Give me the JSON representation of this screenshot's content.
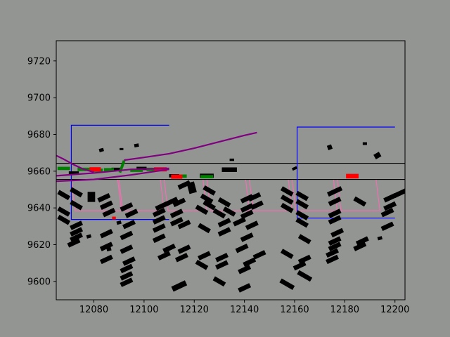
{
  "chart_data": {
    "type": "scatter",
    "title": "",
    "xlabel": "",
    "ylabel": "",
    "xlim": [
      12065,
      12204
    ],
    "ylim": [
      9590,
      9731
    ],
    "xticks": [
      12080,
      12100,
      12120,
      12140,
      12160,
      12180,
      12200
    ],
    "yticks": [
      9600,
      9620,
      9640,
      9660,
      9680,
      9700,
      9720
    ],
    "grid": false,
    "legend": "none",
    "colors": {
      "background": "#939593",
      "lane_lines": "#000000",
      "boundary": "#0000ff",
      "parking_slots": "#ff69b4",
      "trajectory": "#800080",
      "path_marks": "#008000",
      "highlight": "#ff0000",
      "vehicles": "#000000"
    },
    "horizontal_lines": [
      {
        "name": "lane-line-upper",
        "y": 9664.3
      },
      {
        "name": "lane-line-lower",
        "y": 9655.5
      }
    ],
    "boundaries": [
      {
        "name": "boundary-left",
        "points": [
          [
            12110,
            9685
          ],
          [
            12071,
            9685
          ],
          [
            12071,
            9633.7
          ],
          [
            12110,
            9633.7
          ]
        ]
      },
      {
        "name": "boundary-right",
        "points": [
          [
            12200,
            9684
          ],
          [
            12161,
            9684
          ],
          [
            12161,
            9634.5
          ],
          [
            12200,
            9634.5
          ]
        ]
      }
    ],
    "parking_slots": [
      {
        "x0": 12071,
        "x1": 12091,
        "y_top": 9655.3,
        "y_bottom": 9638.5
      },
      {
        "x0": 12090,
        "x1": 12108,
        "y_top": 9655.3,
        "y_bottom": 9638.5
      },
      {
        "x0": 12108,
        "x1": 12125,
        "y_top": 9655.3,
        "y_bottom": 9638.5
      },
      {
        "x0": 12125,
        "x1": 12142,
        "y_top": 9655.3,
        "y_bottom": 9638.5
      },
      {
        "x0": 12142,
        "x1": 12159,
        "y_top": 9655.3,
        "y_bottom": 9638.5
      },
      {
        "x0": 12159,
        "x1": 12177,
        "y_top": 9655.3,
        "y_bottom": 9638.5
      },
      {
        "x0": 12177,
        "x1": 12194,
        "y_top": 9655.3,
        "y_bottom": 9638.5
      }
    ],
    "trajectories": [
      {
        "points": [
          [
            12065,
            9668.5
          ],
          [
            12068,
            9666.5
          ],
          [
            12072,
            9663.5
          ],
          [
            12076,
            9661
          ],
          [
            12080,
            9659.5
          ]
        ]
      },
      {
        "points": [
          [
            12065,
            9654.5
          ],
          [
            12080,
            9655.5
          ],
          [
            12095,
            9658
          ],
          [
            12110,
            9661
          ]
        ]
      },
      {
        "points": [
          [
            12065,
            9657.5
          ],
          [
            12080,
            9659
          ],
          [
            12095,
            9661
          ],
          [
            12110,
            9661.5
          ]
        ]
      },
      {
        "points": [
          [
            12092,
            9666
          ],
          [
            12100,
            9667.5
          ],
          [
            12110,
            9669.5
          ],
          [
            12120,
            9672.5
          ],
          [
            12130,
            9676
          ],
          [
            12140,
            9679.5
          ],
          [
            12145,
            9681
          ]
        ]
      }
    ],
    "path_marks": [
      {
        "x": 12068,
        "y": 9661.5,
        "w": 5,
        "h": 1.8,
        "angle": 0
      },
      {
        "x": 12076,
        "y": 9661,
        "w": 5,
        "h": 1.8,
        "angle": 0
      },
      {
        "x": 12081,
        "y": 9660.5,
        "w": 5,
        "h": 1.8,
        "angle": 0
      },
      {
        "x": 12086,
        "y": 9660.8,
        "w": 4,
        "h": 1.8,
        "angle": 0
      },
      {
        "x": 12091.2,
        "y": 9662.5,
        "w": 5,
        "h": 1.5,
        "angle": 70
      },
      {
        "x": 12097,
        "y": 9660.5,
        "w": 5,
        "h": 1.8,
        "angle": 0
      },
      {
        "x": 12103,
        "y": 9661,
        "w": 4,
        "h": 1.8,
        "angle": 0
      },
      {
        "x": 12115,
        "y": 9657.3,
        "w": 4,
        "h": 1.8,
        "angle": 0
      },
      {
        "x": 12125,
        "y": 9657,
        "w": 5,
        "h": 1.8,
        "angle": 0
      }
    ],
    "highlights": [
      {
        "x": 12080.5,
        "y": 9661,
        "w": 4.5,
        "h": 2.3
      },
      {
        "x": 12106.5,
        "y": 9661,
        "w": 5,
        "h": 2.3
      },
      {
        "x": 12113,
        "y": 9657,
        "w": 4.5,
        "h": 2.3
      },
      {
        "x": 12183,
        "y": 9657.3,
        "w": 5,
        "h": 2.5
      },
      {
        "x": 12088,
        "y": 9634.5,
        "w": 1.5,
        "h": 1.5
      }
    ],
    "vehicles": [
      {
        "x": 12072,
        "y": 9659,
        "w": 4,
        "h": 1.8,
        "angle": 0
      },
      {
        "x": 12089,
        "y": 9661,
        "w": 4,
        "h": 1.8,
        "angle": 0
      },
      {
        "x": 12099,
        "y": 9661.5,
        "w": 4,
        "h": 1.8,
        "angle": 0
      },
      {
        "x": 12112,
        "y": 9657.5,
        "w": 4,
        "h": 1.8,
        "angle": 0
      },
      {
        "x": 12125,
        "y": 9657.5,
        "w": 5.5,
        "h": 2.3,
        "angle": 0
      },
      {
        "x": 12134,
        "y": 9660.8,
        "w": 6,
        "h": 2.5,
        "angle": 0
      },
      {
        "x": 12083,
        "y": 9671.5,
        "w": 1.8,
        "h": 1.8,
        "angle": 15
      },
      {
        "x": 12091,
        "y": 9672,
        "w": 1.5,
        "h": 1.2,
        "angle": 0
      },
      {
        "x": 12097,
        "y": 9674,
        "w": 1.8,
        "h": 1.8,
        "angle": 10
      },
      {
        "x": 12135,
        "y": 9666.2,
        "w": 1.8,
        "h": 1.3,
        "angle": 0
      },
      {
        "x": 12174,
        "y": 9673,
        "w": 1.8,
        "h": 2.5,
        "angle": 20
      },
      {
        "x": 12188,
        "y": 9675,
        "w": 1.7,
        "h": 1.5,
        "angle": 0
      },
      {
        "x": 12193,
        "y": 9668.5,
        "w": 2.5,
        "h": 2.8,
        "angle": 30
      },
      {
        "x": 12160,
        "y": 9661.5,
        "w": 2,
        "h": 1.5,
        "angle": 25
      },
      {
        "x": 12068,
        "y": 9647,
        "w": 5,
        "h": 2.5,
        "angle": -30
      },
      {
        "x": 12073,
        "y": 9648.5,
        "w": 5,
        "h": 2.5,
        "angle": -30
      },
      {
        "x": 12079,
        "y": 9646,
        "w": 3,
        "h": 5.5,
        "angle": 0
      },
      {
        "x": 12084,
        "y": 9645.5,
        "w": 5,
        "h": 2.5,
        "angle": 25
      },
      {
        "x": 12073,
        "y": 9641.5,
        "w": 5,
        "h": 2.5,
        "angle": -30
      },
      {
        "x": 12068,
        "y": 9638,
        "w": 5,
        "h": 2.5,
        "angle": -30
      },
      {
        "x": 12085,
        "y": 9641.5,
        "w": 5,
        "h": 2.5,
        "angle": 25
      },
      {
        "x": 12086,
        "y": 9637.5,
        "w": 5,
        "h": 2.5,
        "angle": 25
      },
      {
        "x": 12093,
        "y": 9640.5,
        "w": 5,
        "h": 2.5,
        "angle": 25
      },
      {
        "x": 12095,
        "y": 9637,
        "w": 5,
        "h": 2.5,
        "angle": 25
      },
      {
        "x": 12068,
        "y": 9633.5,
        "w": 5,
        "h": 2.5,
        "angle": -30
      },
      {
        "x": 12073,
        "y": 9630.5,
        "w": 5,
        "h": 2.5,
        "angle": 25
      },
      {
        "x": 12073,
        "y": 9627,
        "w": 5,
        "h": 2.5,
        "angle": 25
      },
      {
        "x": 12073,
        "y": 9624,
        "w": 5,
        "h": 2.5,
        "angle": 25
      },
      {
        "x": 12072,
        "y": 9621,
        "w": 5,
        "h": 2.5,
        "angle": 25
      },
      {
        "x": 12078,
        "y": 9624.5,
        "w": 1.8,
        "h": 1.8,
        "angle": 15
      },
      {
        "x": 12085,
        "y": 9626,
        "w": 5,
        "h": 2.5,
        "angle": 25
      },
      {
        "x": 12094,
        "y": 9631,
        "w": 5,
        "h": 2.5,
        "angle": 25
      },
      {
        "x": 12090,
        "y": 9632,
        "w": 1.8,
        "h": 1.8,
        "angle": 15
      },
      {
        "x": 12093,
        "y": 9625,
        "w": 5,
        "h": 2.5,
        "angle": 25
      },
      {
        "x": 12085,
        "y": 9619,
        "w": 5,
        "h": 2.5,
        "angle": 25
      },
      {
        "x": 12093,
        "y": 9617.5,
        "w": 5,
        "h": 2.5,
        "angle": 25
      },
      {
        "x": 12086,
        "y": 9617.5,
        "w": 1.8,
        "h": 1.8,
        "angle": 15
      },
      {
        "x": 12085,
        "y": 9612,
        "w": 5,
        "h": 2.5,
        "angle": 25
      },
      {
        "x": 12094,
        "y": 9611,
        "w": 5,
        "h": 2.5,
        "angle": 25
      },
      {
        "x": 12093,
        "y": 9607,
        "w": 5,
        "h": 2.5,
        "angle": 25
      },
      {
        "x": 12093,
        "y": 9603,
        "w": 5,
        "h": 2.5,
        "angle": 25
      },
      {
        "x": 12093,
        "y": 9599.5,
        "w": 5,
        "h": 2.5,
        "angle": 25
      },
      {
        "x": 12107,
        "y": 9641,
        "w": 5,
        "h": 2.5,
        "angle": 25
      },
      {
        "x": 12111,
        "y": 9643.5,
        "w": 5,
        "h": 2.5,
        "angle": 25
      },
      {
        "x": 12114,
        "y": 9643,
        "w": 5,
        "h": 2.5,
        "angle": 25
      },
      {
        "x": 12106,
        "y": 9637.5,
        "w": 5,
        "h": 2.5,
        "angle": 25
      },
      {
        "x": 12113,
        "y": 9637,
        "w": 5,
        "h": 2.5,
        "angle": 25
      },
      {
        "x": 12106,
        "y": 9633.5,
        "w": 5,
        "h": 2.5,
        "angle": 25
      },
      {
        "x": 12113,
        "y": 9632.5,
        "w": 5,
        "h": 2.5,
        "angle": 25
      },
      {
        "x": 12106,
        "y": 9629,
        "w": 5,
        "h": 2.5,
        "angle": 25
      },
      {
        "x": 12116,
        "y": 9631,
        "w": 5,
        "h": 2.5,
        "angle": 25
      },
      {
        "x": 12106,
        "y": 9623.5,
        "w": 5,
        "h": 2.5,
        "angle": 25
      },
      {
        "x": 12119,
        "y": 9651,
        "w": 3,
        "h": 6,
        "angle": 15
      },
      {
        "x": 12116,
        "y": 9652.5,
        "w": 5,
        "h": 2.5,
        "angle": 25
      },
      {
        "x": 12110,
        "y": 9618,
        "w": 5,
        "h": 2.5,
        "angle": 25
      },
      {
        "x": 12116,
        "y": 9617.5,
        "w": 5,
        "h": 2.5,
        "angle": 25
      },
      {
        "x": 12108,
        "y": 9614,
        "w": 5,
        "h": 2.5,
        "angle": 25
      },
      {
        "x": 12115,
        "y": 9613,
        "w": 5,
        "h": 2.5,
        "angle": 25
      },
      {
        "x": 12114,
        "y": 9597.5,
        "w": 6,
        "h": 3,
        "angle": 25
      },
      {
        "x": 12126,
        "y": 9649.5,
        "w": 5,
        "h": 2.5,
        "angle": -30
      },
      {
        "x": 12125,
        "y": 9645,
        "w": 5,
        "h": 2.5,
        "angle": -30
      },
      {
        "x": 12126,
        "y": 9641.5,
        "w": 5,
        "h": 2.5,
        "angle": -30
      },
      {
        "x": 12123,
        "y": 9639,
        "w": 5,
        "h": 2.5,
        "angle": -30
      },
      {
        "x": 12132,
        "y": 9643,
        "w": 5,
        "h": 2.5,
        "angle": -30
      },
      {
        "x": 12134,
        "y": 9638,
        "w": 5,
        "h": 2.5,
        "angle": -30
      },
      {
        "x": 12130,
        "y": 9637,
        "w": 5,
        "h": 2.5,
        "angle": -30
      },
      {
        "x": 12132,
        "y": 9632,
        "w": 5,
        "h": 2.5,
        "angle": 25
      },
      {
        "x": 12124,
        "y": 9629,
        "w": 5,
        "h": 2.5,
        "angle": -30
      },
      {
        "x": 12132,
        "y": 9627,
        "w": 5,
        "h": 2.5,
        "angle": 25
      },
      {
        "x": 12124,
        "y": 9614,
        "w": 5,
        "h": 2.5,
        "angle": 25
      },
      {
        "x": 12131,
        "y": 9613,
        "w": 5,
        "h": 2.5,
        "angle": 25
      },
      {
        "x": 12123,
        "y": 9609,
        "w": 5,
        "h": 2.5,
        "angle": -30
      },
      {
        "x": 12131,
        "y": 9609,
        "w": 5,
        "h": 2.5,
        "angle": 25
      },
      {
        "x": 12130,
        "y": 9600,
        "w": 5,
        "h": 2.5,
        "angle": -30
      },
      {
        "x": 12141,
        "y": 9645,
        "w": 5,
        "h": 2.5,
        "angle": 25
      },
      {
        "x": 12144,
        "y": 9646,
        "w": 5,
        "h": 2.5,
        "angle": 25
      },
      {
        "x": 12141,
        "y": 9640,
        "w": 5,
        "h": 2.5,
        "angle": 25
      },
      {
        "x": 12145,
        "y": 9641.5,
        "w": 5,
        "h": 2.5,
        "angle": 25
      },
      {
        "x": 12141,
        "y": 9636.5,
        "w": 5,
        "h": 2.5,
        "angle": 25
      },
      {
        "x": 12138,
        "y": 9632.5,
        "w": 5,
        "h": 2.5,
        "angle": 25
      },
      {
        "x": 12143,
        "y": 9630.5,
        "w": 5,
        "h": 2.5,
        "angle": 25
      },
      {
        "x": 12141,
        "y": 9624,
        "w": 5,
        "h": 2.5,
        "angle": 25
      },
      {
        "x": 12139,
        "y": 9618,
        "w": 5,
        "h": 2.5,
        "angle": 25
      },
      {
        "x": 12146,
        "y": 9614.5,
        "w": 5,
        "h": 2.5,
        "angle": 25
      },
      {
        "x": 12142,
        "y": 9610.5,
        "w": 5,
        "h": 2.5,
        "angle": 25
      },
      {
        "x": 12140,
        "y": 9606.5,
        "w": 5,
        "h": 2.5,
        "angle": 25
      },
      {
        "x": 12140,
        "y": 9596.5,
        "w": 5,
        "h": 2.5,
        "angle": 25
      },
      {
        "x": 12157,
        "y": 9649,
        "w": 5,
        "h": 2.5,
        "angle": -30
      },
      {
        "x": 12157,
        "y": 9644.5,
        "w": 5,
        "h": 2.5,
        "angle": -30
      },
      {
        "x": 12163,
        "y": 9646.5,
        "w": 5,
        "h": 2.5,
        "angle": -30
      },
      {
        "x": 12157,
        "y": 9640,
        "w": 5,
        "h": 2.5,
        "angle": -30
      },
      {
        "x": 12163,
        "y": 9642,
        "w": 5,
        "h": 2.5,
        "angle": -30
      },
      {
        "x": 12163,
        "y": 9636,
        "w": 5,
        "h": 2.5,
        "angle": -30
      },
      {
        "x": 12163,
        "y": 9632,
        "w": 5,
        "h": 2.5,
        "angle": -30
      },
      {
        "x": 12164,
        "y": 9623,
        "w": 5,
        "h": 2.5,
        "angle": -30
      },
      {
        "x": 12157,
        "y": 9615,
        "w": 5,
        "h": 2.5,
        "angle": -30
      },
      {
        "x": 12164,
        "y": 9612,
        "w": 5,
        "h": 2.5,
        "angle": 25
      },
      {
        "x": 12162,
        "y": 9608.5,
        "w": 5,
        "h": 2.5,
        "angle": 25
      },
      {
        "x": 12164,
        "y": 9603,
        "w": 6,
        "h": 2.5,
        "angle": -30
      },
      {
        "x": 12157,
        "y": 9598.5,
        "w": 6,
        "h": 2.5,
        "angle": -30
      },
      {
        "x": 12176,
        "y": 9649,
        "w": 6,
        "h": 2.5,
        "angle": 25
      },
      {
        "x": 12176,
        "y": 9643.5,
        "w": 5,
        "h": 2.5,
        "angle": 25
      },
      {
        "x": 12176,
        "y": 9637,
        "w": 5,
        "h": 2.5,
        "angle": 25
      },
      {
        "x": 12176,
        "y": 9633.5,
        "w": 5,
        "h": 2.5,
        "angle": 25
      },
      {
        "x": 12177,
        "y": 9626.5,
        "w": 5,
        "h": 2.5,
        "angle": 25
      },
      {
        "x": 12176,
        "y": 9622,
        "w": 5,
        "h": 2.5,
        "angle": 25
      },
      {
        "x": 12176,
        "y": 9619,
        "w": 5,
        "h": 2.5,
        "angle": 25
      },
      {
        "x": 12175,
        "y": 9615.5,
        "w": 5,
        "h": 2.5,
        "angle": 25
      },
      {
        "x": 12175,
        "y": 9612,
        "w": 5,
        "h": 2.5,
        "angle": 25
      },
      {
        "x": 12186,
        "y": 9643.5,
        "w": 5,
        "h": 2.5,
        "angle": -30
      },
      {
        "x": 12187,
        "y": 9622,
        "w": 5,
        "h": 2.5,
        "angle": 25
      },
      {
        "x": 12186,
        "y": 9619,
        "w": 5,
        "h": 2.5,
        "angle": 25
      },
      {
        "x": 12194,
        "y": 9623.5,
        "w": 1.8,
        "h": 1.8,
        "angle": 15
      },
      {
        "x": 12198,
        "y": 9645.5,
        "w": 5,
        "h": 2.5,
        "angle": 25
      },
      {
        "x": 12202,
        "y": 9648,
        "w": 5,
        "h": 2.5,
        "angle": 25
      },
      {
        "x": 12198,
        "y": 9641,
        "w": 5,
        "h": 2.5,
        "angle": 25
      },
      {
        "x": 12197,
        "y": 9637.5,
        "w": 5,
        "h": 2.5,
        "angle": 25
      },
      {
        "x": 12197,
        "y": 9630,
        "w": 5,
        "h": 2.5,
        "angle": 25
      }
    ]
  }
}
